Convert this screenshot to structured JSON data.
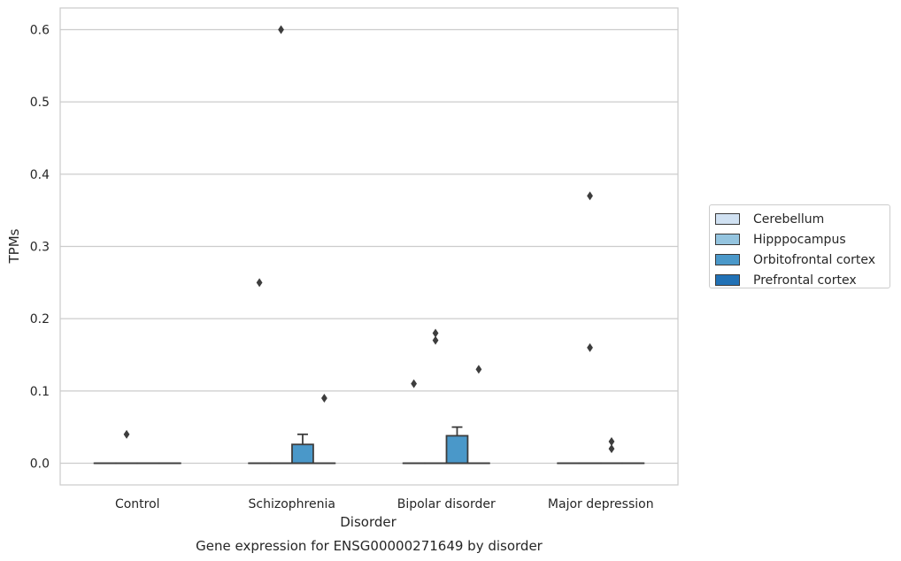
{
  "chart_data": {
    "type": "box",
    "title": "",
    "caption": "Gene expression for ENSG00000271649 by disorder",
    "xlabel": "Disorder",
    "ylabel": "TPMs",
    "ylim": [
      -0.03,
      0.63
    ],
    "yticks": [
      "0.0",
      "0.1",
      "0.2",
      "0.3",
      "0.4",
      "0.5",
      "0.6"
    ],
    "grid": "horizontal",
    "legend_placement": "right",
    "categories": [
      "Control",
      "Schizophrenia",
      "Bipolar disorder",
      "Major depression"
    ],
    "series": [
      {
        "name": "Cerebellum",
        "color": "#d0e1f2",
        "boxes": [
          {
            "q1": 0,
            "median": 0,
            "q3": 0,
            "whisker_low": 0,
            "whisker_high": 0,
            "outliers": []
          },
          {
            "q1": 0,
            "median": 0,
            "q3": 0,
            "whisker_low": 0,
            "whisker_high": 0,
            "outliers": [
              0.25
            ]
          },
          {
            "q1": 0,
            "median": 0,
            "q3": 0,
            "whisker_low": 0,
            "whisker_high": 0,
            "outliers": [
              0.11
            ]
          },
          {
            "q1": 0,
            "median": 0,
            "q3": 0,
            "whisker_low": 0,
            "whisker_high": 0,
            "outliers": []
          }
        ]
      },
      {
        "name": "Hipppocampus",
        "color": "#94c4df",
        "boxes": [
          {
            "q1": 0,
            "median": 0,
            "q3": 0,
            "whisker_low": 0,
            "whisker_high": 0,
            "outliers": [
              0.04
            ]
          },
          {
            "q1": 0,
            "median": 0,
            "q3": 0,
            "whisker_low": 0,
            "whisker_high": 0,
            "outliers": [
              0.6
            ]
          },
          {
            "q1": 0,
            "median": 0,
            "q3": 0,
            "whisker_low": 0,
            "whisker_high": 0,
            "outliers": [
              0.18,
              0.17
            ]
          },
          {
            "q1": 0,
            "median": 0,
            "q3": 0,
            "whisker_low": 0,
            "whisker_high": 0,
            "outliers": [
              0.37,
              0.16
            ]
          }
        ]
      },
      {
        "name": "Orbitofrontal cortex",
        "color": "#4a98c9",
        "boxes": [
          {
            "q1": 0,
            "median": 0,
            "q3": 0,
            "whisker_low": 0,
            "whisker_high": 0,
            "outliers": []
          },
          {
            "q1": 0,
            "median": 0,
            "q3": 0.026,
            "whisker_low": 0,
            "whisker_high": 0.04,
            "outliers": []
          },
          {
            "q1": 0,
            "median": 0,
            "q3": 0.038,
            "whisker_low": 0,
            "whisker_high": 0.05,
            "outliers": []
          },
          {
            "q1": 0,
            "median": 0,
            "q3": 0,
            "whisker_low": 0,
            "whisker_high": 0,
            "outliers": [
              0.03,
              0.02
            ]
          }
        ]
      },
      {
        "name": "Prefrontal cortex",
        "color": "#2171b5",
        "boxes": [
          {
            "q1": 0,
            "median": 0,
            "q3": 0,
            "whisker_low": 0,
            "whisker_high": 0,
            "outliers": []
          },
          {
            "q1": 0,
            "median": 0,
            "q3": 0,
            "whisker_low": 0,
            "whisker_high": 0,
            "outliers": [
              0.09
            ]
          },
          {
            "q1": 0,
            "median": 0,
            "q3": 0,
            "whisker_low": 0,
            "whisker_high": 0,
            "outliers": [
              0.13
            ]
          },
          {
            "q1": 0,
            "median": 0,
            "q3": 0,
            "whisker_low": 0,
            "whisker_high": 0,
            "outliers": []
          }
        ]
      }
    ]
  }
}
